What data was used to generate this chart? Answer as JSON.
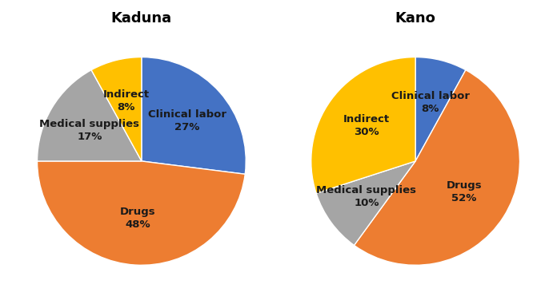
{
  "kaduna": {
    "title": "Kaduna",
    "slices": [
      {
        "label": "Clinical labor",
        "value": 27,
        "color": "#4472C4"
      },
      {
        "label": "Drugs",
        "value": 48,
        "color": "#ED7D31"
      },
      {
        "label": "Medical supplies",
        "value": 17,
        "color": "#A5A5A5"
      },
      {
        "label": "Indirect",
        "value": 8,
        "color": "#FFC000"
      }
    ],
    "startangle": 90,
    "label_radii": [
      0.58,
      0.55,
      0.58,
      0.6
    ]
  },
  "kano": {
    "title": "Kano",
    "slices": [
      {
        "label": "Clinical labor",
        "value": 8,
        "color": "#4472C4"
      },
      {
        "label": "Drugs",
        "value": 52,
        "color": "#ED7D31"
      },
      {
        "label": "Medical supplies",
        "value": 10,
        "color": "#A5A5A5"
      },
      {
        "label": "Indirect",
        "value": 30,
        "color": "#FFC000"
      }
    ],
    "startangle": 90,
    "label_radii": [
      0.58,
      0.55,
      0.58,
      0.58
    ]
  },
  "background_color": "#FFFFFF",
  "title_fontsize": 13,
  "label_fontsize": 9.5,
  "label_color": "#1a1a1a",
  "counterclock": false
}
